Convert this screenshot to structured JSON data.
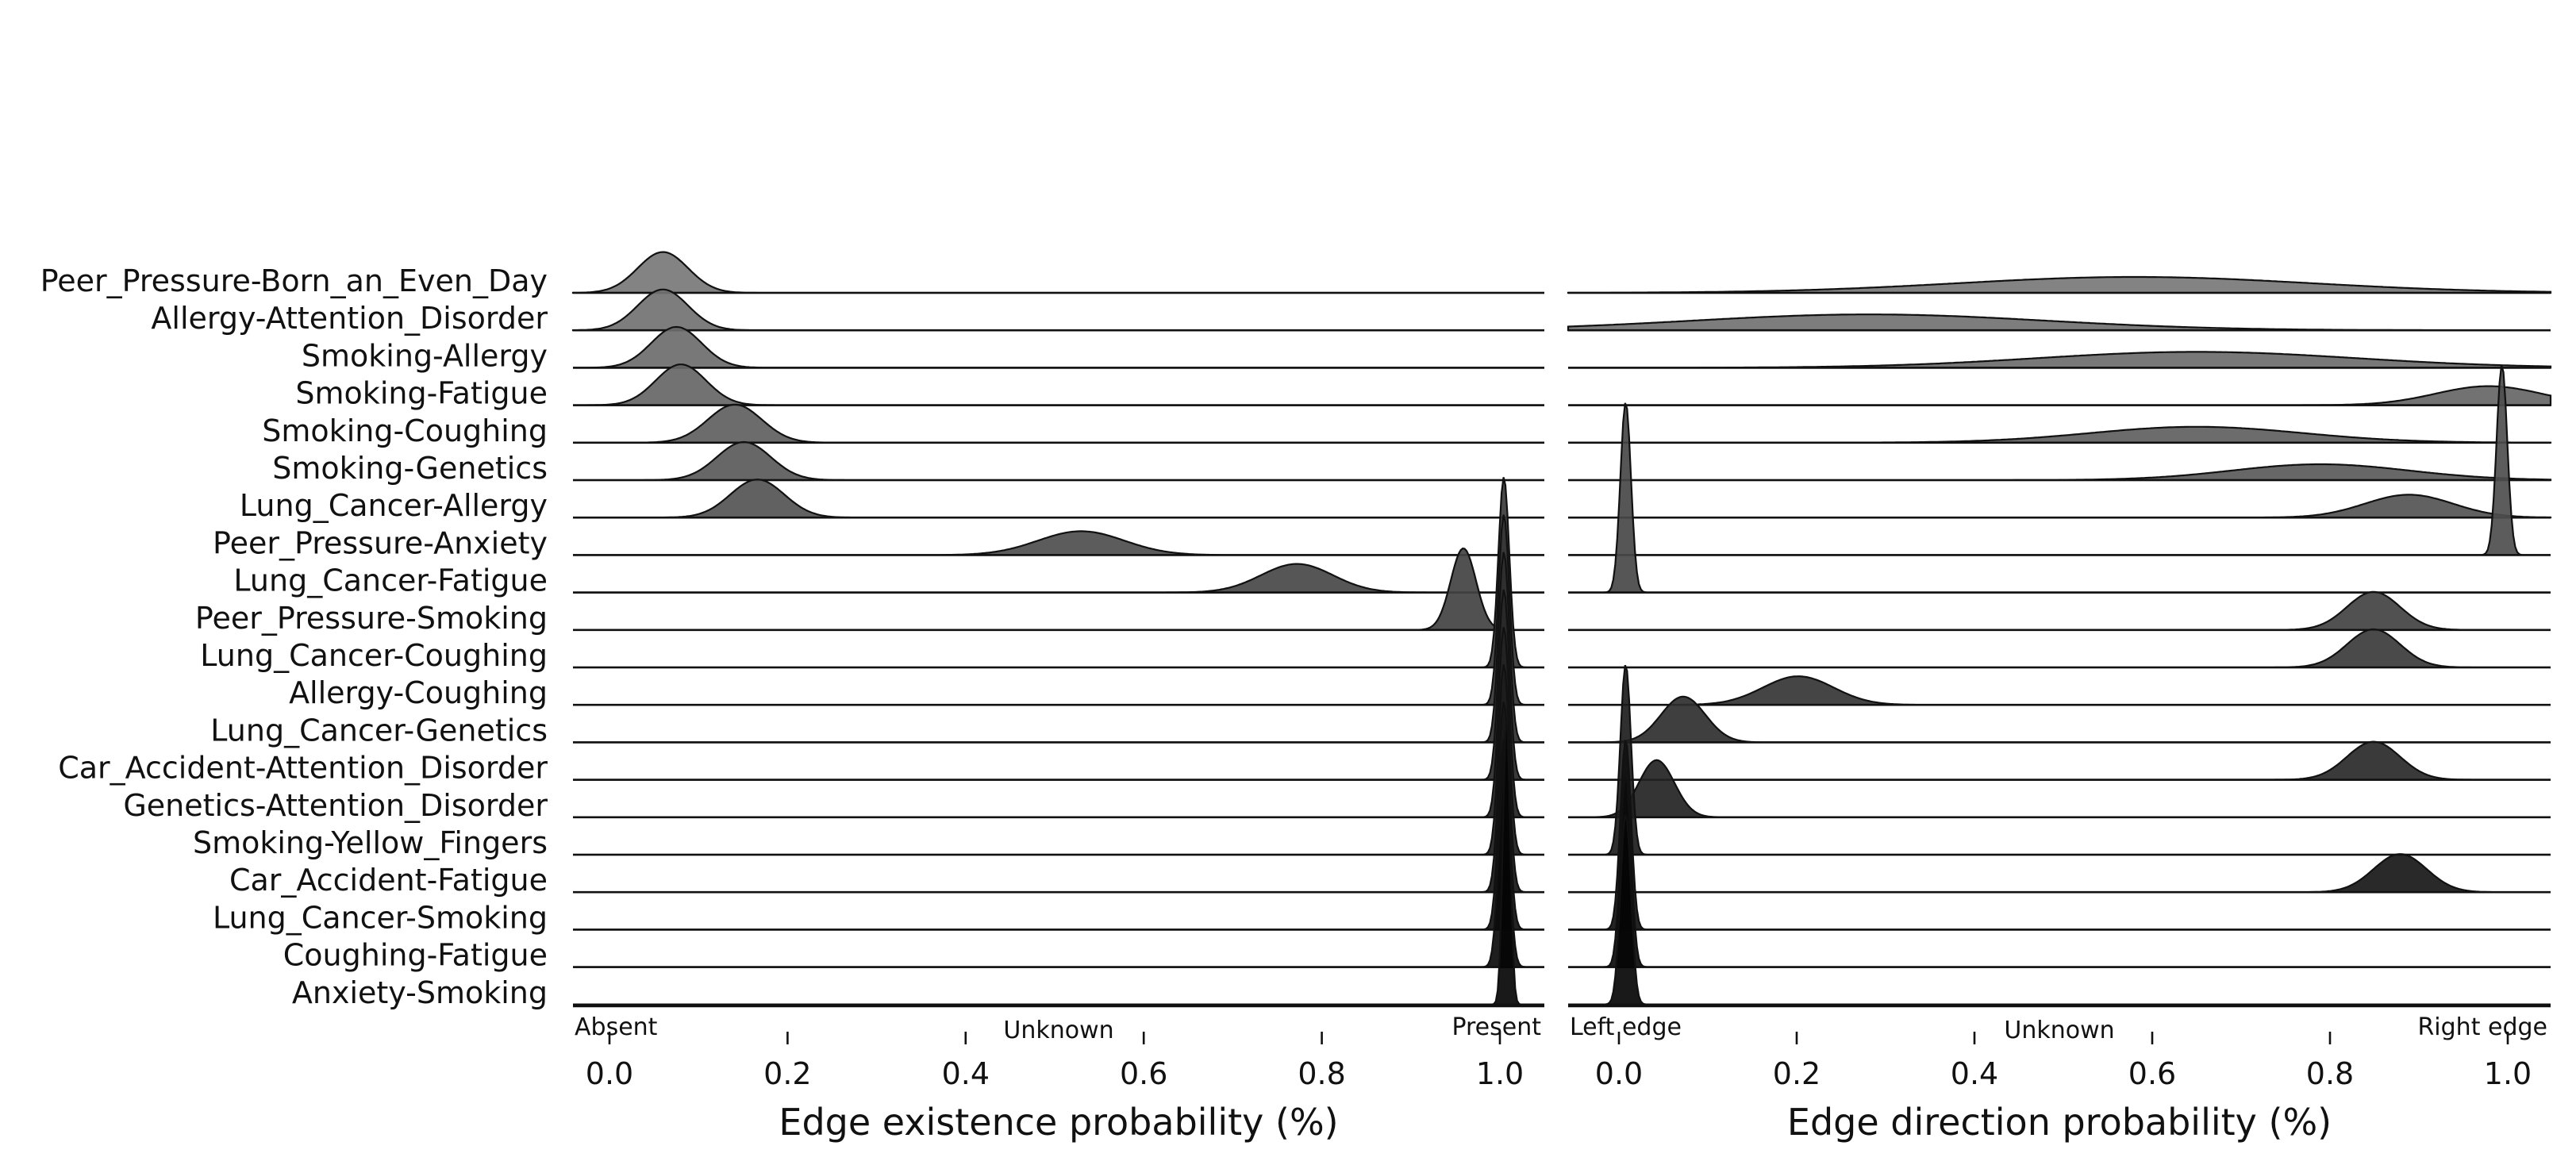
{
  "chart_data": {
    "type": "ridgeline",
    "edges": [
      "Peer_Pressure-Born_an_Even_Day",
      "Allergy-Attention_Disorder",
      "Smoking-Allergy",
      "Smoking-Fatigue",
      "Smoking-Coughing",
      "Smoking-Genetics",
      "Lung_Cancer-Allergy",
      "Peer_Pressure-Anxiety",
      "Lung_Cancer-Fatigue",
      "Peer_Pressure-Smoking",
      "Lung_Cancer-Coughing",
      "Allergy-Coughing",
      "Lung_Cancer-Genetics",
      "Car_Accident-Attention_Disorder",
      "Genetics-Attention_Disorder",
      "Smoking-Yellow_Fingers",
      "Car_Accident-Fatigue",
      "Lung_Cancer-Smoking",
      "Coughing-Fatigue",
      "Anxiety-Smoking"
    ],
    "panels": [
      {
        "xlabel": "Edge existence probability (%)",
        "xlim": [
          -0.04,
          1.04
        ],
        "ticks": [
          0.0,
          0.2,
          0.4,
          0.6,
          0.8,
          1.0
        ],
        "tick_labels": [
          "0.0",
          "0.2",
          "0.4",
          "0.6",
          "0.8",
          "1.0"
        ],
        "annotations": {
          "left": "Absent",
          "middle": "Unknown",
          "right": "Present"
        },
        "series": [
          {
            "mode": 0.06,
            "spread": 0.028
          },
          {
            "mode": 0.06,
            "spread": 0.028
          },
          {
            "mode": 0.075,
            "spread": 0.028
          },
          {
            "mode": 0.08,
            "spread": 0.028
          },
          {
            "mode": 0.14,
            "spread": 0.03
          },
          {
            "mode": 0.15,
            "spread": 0.03
          },
          {
            "mode": 0.165,
            "spread": 0.03
          },
          {
            "mode": 0.525,
            "spread": 0.048
          },
          {
            "mode": 0.765,
            "spread": 0.04
          },
          {
            "mode": 0.95,
            "spread": 0.014
          },
          {
            "mode": 0.995,
            "spread": 0.006
          },
          {
            "mode": 0.995,
            "spread": 0.006
          },
          {
            "mode": 0.995,
            "spread": 0.006
          },
          {
            "mode": 0.995,
            "spread": 0.006
          },
          {
            "mode": 0.995,
            "spread": 0.006
          },
          {
            "mode": 0.995,
            "spread": 0.006
          },
          {
            "mode": 0.995,
            "spread": 0.006
          },
          {
            "mode": 0.995,
            "spread": 0.006
          },
          {
            "mode": 0.995,
            "spread": 0.006
          },
          {
            "mode": 0.998,
            "spread": 0.004
          }
        ]
      },
      {
        "xlabel": "Edge direction probability (%)",
        "xlim": [
          -0.06,
          1.05
        ],
        "ticks": [
          0.0,
          0.2,
          0.4,
          0.6,
          0.8,
          1.0
        ],
        "tick_labels": [
          "0.0",
          "0.2",
          "0.4",
          "0.6",
          "0.8",
          "1.0"
        ],
        "annotations": {
          "left": "Left edge",
          "middle": "Unknown",
          "right": "Right edge"
        },
        "series": [
          {
            "mode": 0.58,
            "spread": 0.2
          },
          {
            "mode": 0.28,
            "spread": 0.2
          },
          {
            "mode": 0.65,
            "spread": 0.18
          },
          {
            "mode": 0.98,
            "spread": 0.06
          },
          {
            "mode": 0.65,
            "spread": 0.12
          },
          {
            "mode": 0.79,
            "spread": 0.1
          },
          {
            "mode": 0.89,
            "spread": 0.05
          },
          {
            "mode": 0.995,
            "spread": 0.006
          },
          {
            "mode": 0.005,
            "spread": 0.006
          },
          {
            "mode": 0.85,
            "spread": 0.03
          },
          {
            "mode": 0.85,
            "spread": 0.03
          },
          {
            "mode": 0.2,
            "spread": 0.04
          },
          {
            "mode": 0.07,
            "spread": 0.025
          },
          {
            "mode": 0.85,
            "spread": 0.03
          },
          {
            "mode": 0.04,
            "spread": 0.02
          },
          {
            "mode": 0.005,
            "spread": 0.006
          },
          {
            "mode": 0.88,
            "spread": 0.03
          },
          {
            "mode": 0.005,
            "spread": 0.006
          },
          {
            "mode": 0.005,
            "spread": 0.006
          },
          {
            "mode": 0.005,
            "spread": 0.006
          }
        ]
      }
    ]
  }
}
